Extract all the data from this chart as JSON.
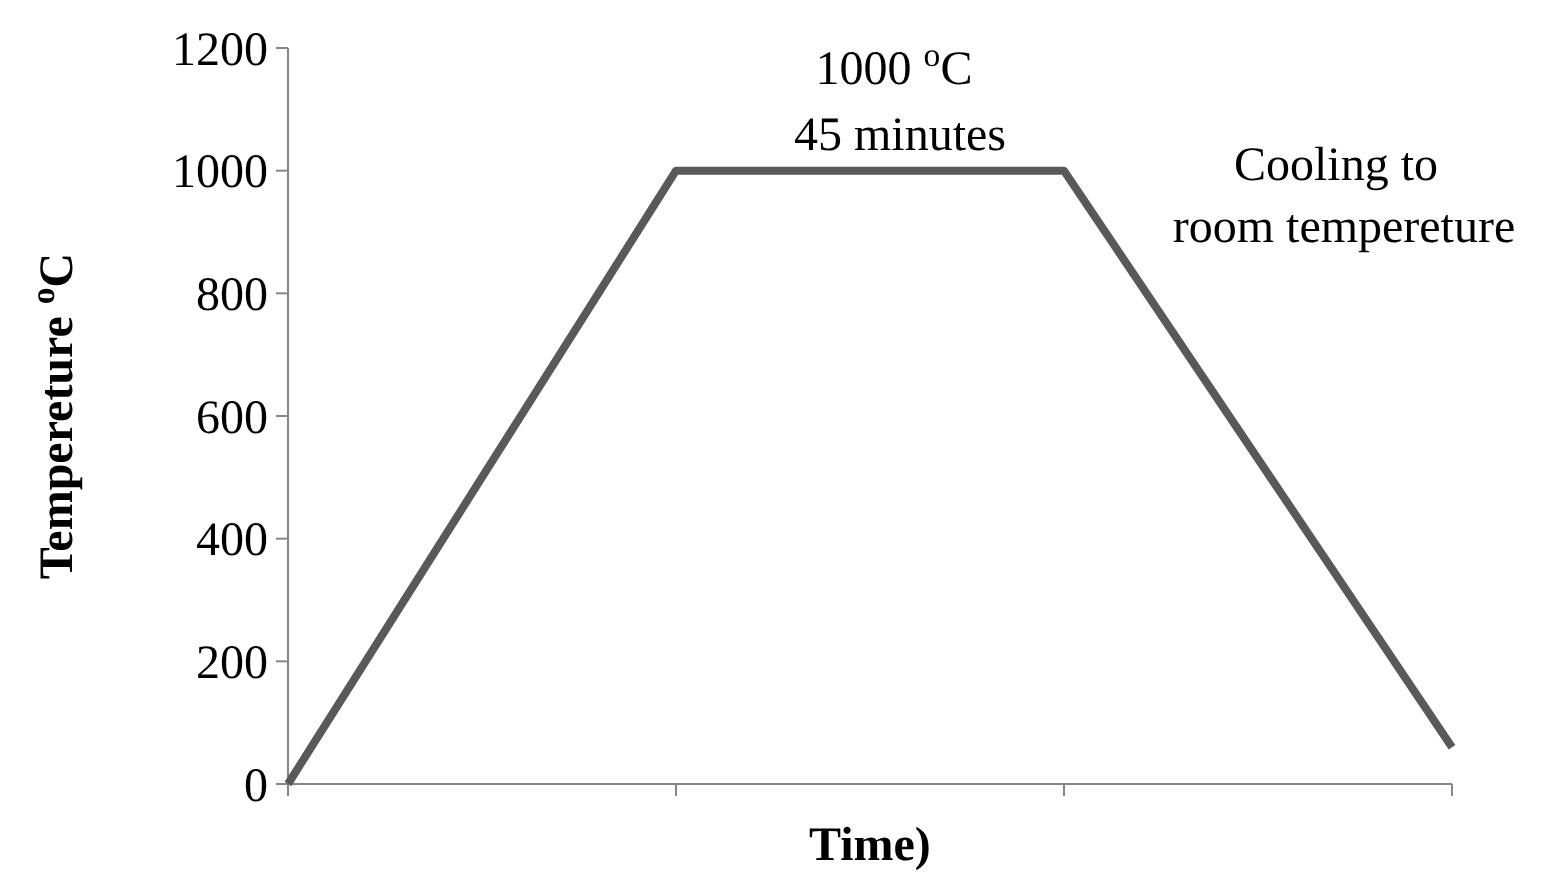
{
  "chart_data": {
    "type": "line",
    "xlabel": "Time)",
    "ylabel": "Tempereture $^{o}$C",
    "categories": [
      null,
      null,
      null,
      null
    ],
    "series": [
      {
        "color": "#595959",
        "values": [
          0,
          1000,
          1000,
          60
        ]
      }
    ],
    "ylim": [
      0,
      1200
    ],
    "yticks": [
      0,
      200,
      400,
      600,
      800,
      1000,
      1200
    ],
    "grid": false,
    "marker": "none",
    "line_style": "solid",
    "annotations": [
      "1000 $^{o}$C",
      "45 minutes",
      "Cooling to",
      "room tempereture"
    ]
  }
}
